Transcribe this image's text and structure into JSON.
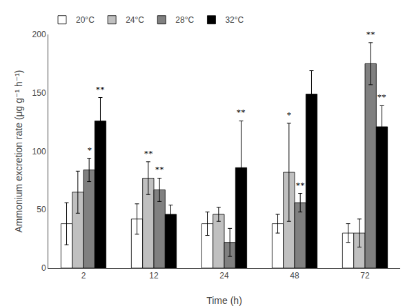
{
  "chart_data": {
    "type": "bar",
    "xlabel": "Time (h)",
    "ylabel": "Ammonium excretion rate (μg g⁻¹ h⁻¹)",
    "categories": [
      "2",
      "12",
      "24",
      "48",
      "72"
    ],
    "series": [
      {
        "name": "20°C",
        "color": "#ffffff",
        "values": [
          38,
          42,
          38,
          38,
          30
        ],
        "errors": [
          18,
          13,
          10,
          8,
          8
        ]
      },
      {
        "name": "24°C",
        "color": "#c0c0c0",
        "values": [
          65,
          77,
          46,
          82,
          30
        ],
        "errors": [
          18,
          14,
          6,
          42,
          12
        ]
      },
      {
        "name": "28°C",
        "color": "#808080",
        "values": [
          84,
          67,
          22,
          56,
          175
        ],
        "errors": [
          10,
          10,
          12,
          8,
          18
        ]
      },
      {
        "name": "32°C",
        "color": "#000000",
        "values": [
          126,
          46,
          86,
          149,
          121
        ],
        "errors": [
          20,
          8,
          40,
          20,
          18
        ]
      }
    ],
    "annotations": [
      {
        "series": "28°C",
        "category": "2",
        "text": "*"
      },
      {
        "series": "32°C",
        "category": "2",
        "text": "**"
      },
      {
        "series": "24°C",
        "category": "12",
        "text": "**"
      },
      {
        "series": "28°C",
        "category": "12",
        "text": "**"
      },
      {
        "series": "32°C",
        "category": "24",
        "text": "**"
      },
      {
        "series": "24°C",
        "category": "48",
        "text": "*"
      },
      {
        "series": "28°C",
        "category": "48",
        "text": "**"
      },
      {
        "series": "28°C",
        "category": "72",
        "text": "**"
      },
      {
        "series": "32°C",
        "category": "72",
        "text": "**"
      }
    ],
    "ylim": [
      0,
      200
    ],
    "yticks": [
      0,
      50,
      100,
      150,
      200
    ],
    "grid": false,
    "legend": "top"
  }
}
